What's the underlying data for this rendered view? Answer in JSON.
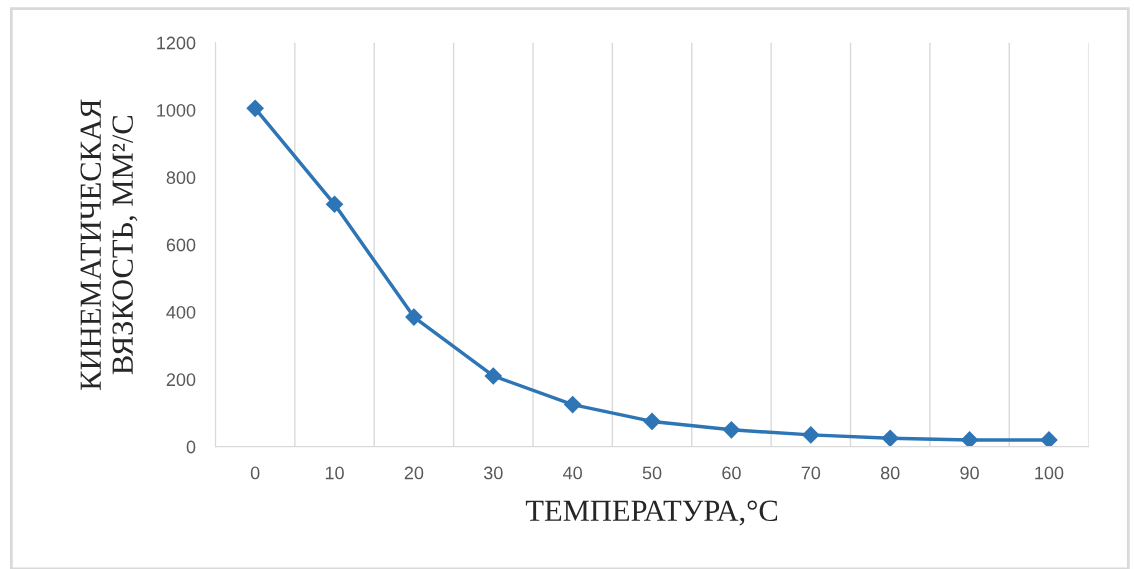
{
  "chart_data": {
    "type": "line",
    "xlabel": "ТЕМПЕРАТУРА,°С",
    "ylabel": "КИНЕМАТИЧЕСКАЯ\nВЯЗКОСТЬ, ММ²/С",
    "categories": [
      "0",
      "10",
      "20",
      "30",
      "40",
      "50",
      "60",
      "70",
      "80",
      "90",
      "100"
    ],
    "series": [
      {
        "color": "#2e75b6",
        "values": [
          1005,
          720,
          385,
          210,
          125,
          75,
          50,
          35,
          25,
          20,
          20
        ]
      }
    ],
    "ylim": [
      0,
      1200
    ],
    "yticks": [
      0,
      200,
      400,
      600,
      800,
      1000,
      1200
    ],
    "grid": "x",
    "marker": "diamond",
    "line_style": "solid",
    "legend": false
  }
}
